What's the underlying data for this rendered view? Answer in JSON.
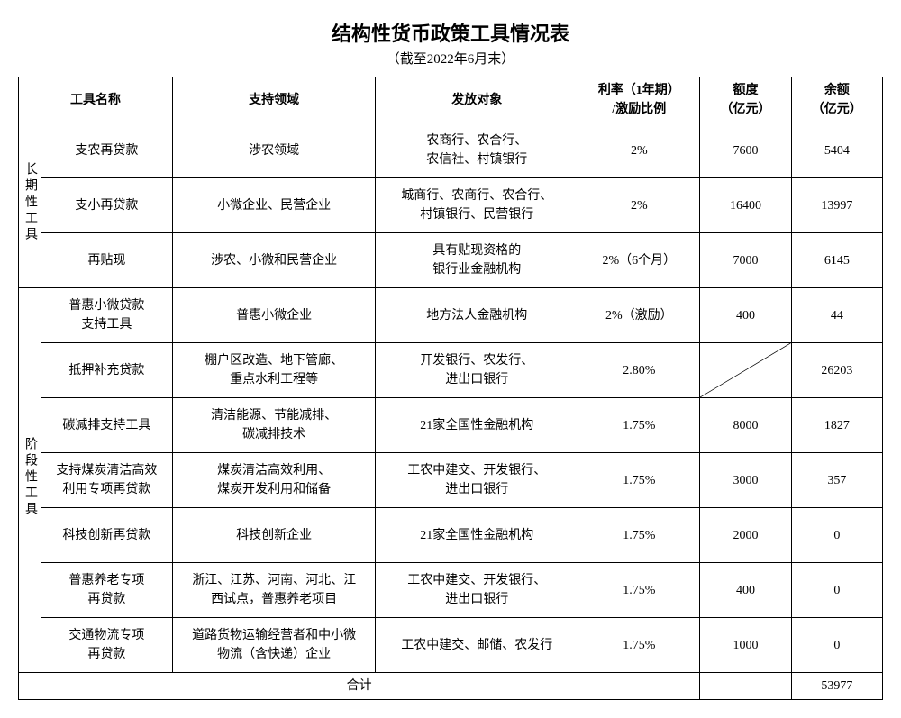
{
  "title": "结构性货币政策工具情况表",
  "subtitle": "（截至2022年6月末）",
  "headers": {
    "name": "工具名称",
    "field": "支持领域",
    "object": "发放对象",
    "rate": "利率（1年期）\n/激励比例",
    "quota": "额度\n（亿元）",
    "balance": "余额\n（亿元）"
  },
  "groups": {
    "longterm": "长期性工具",
    "phased": "阶段性工具"
  },
  "longterm_rows": [
    {
      "name": "支农再贷款",
      "field": "涉农领域",
      "object": "农商行、农合行、\n农信社、村镇银行",
      "rate": "2%",
      "quota": "7600",
      "balance": "5404"
    },
    {
      "name": "支小再贷款",
      "field": "小微企业、民营企业",
      "object": "城商行、农商行、农合行、\n村镇银行、民营银行",
      "rate": "2%",
      "quota": "16400",
      "balance": "13997"
    },
    {
      "name": "再贴现",
      "field": "涉农、小微和民营企业",
      "object": "具有贴现资格的\n银行业金融机构",
      "rate": "2%（6个月）",
      "quota": "7000",
      "balance": "6145"
    }
  ],
  "phased_rows": [
    {
      "name": "普惠小微贷款\n支持工具",
      "field": "普惠小微企业",
      "object": "地方法人金融机构",
      "rate": "2%（激励）",
      "quota": "400",
      "balance": "44"
    },
    {
      "name": "抵押补充贷款",
      "field": "棚户区改造、地下管廊、\n重点水利工程等",
      "object": "开发银行、农发行、\n进出口银行",
      "rate": "2.80%",
      "quota": "__DIAG__",
      "balance": "26203"
    },
    {
      "name": "碳减排支持工具",
      "field": "清洁能源、节能减排、\n碳减排技术",
      "object": "21家全国性金融机构",
      "rate": "1.75%",
      "quota": "8000",
      "balance": "1827"
    },
    {
      "name": "支持煤炭清洁高效\n利用专项再贷款",
      "field": "煤炭清洁高效利用、\n煤炭开发利用和储备",
      "object": "工农中建交、开发银行、\n进出口银行",
      "rate": "1.75%",
      "quota": "3000",
      "balance": "357"
    },
    {
      "name": "科技创新再贷款",
      "field": "科技创新企业",
      "object": "21家全国性金融机构",
      "rate": "1.75%",
      "quota": "2000",
      "balance": "0"
    },
    {
      "name": "普惠养老专项\n再贷款",
      "field": "浙江、江苏、河南、河北、江\n西试点，普惠养老项目",
      "object": "工农中建交、开发银行、\n进出口银行",
      "rate": "1.75%",
      "quota": "400",
      "balance": "0"
    },
    {
      "name": "交通物流专项\n再贷款",
      "field": "道路货物运输经营者和中小微\n物流（含快递）企业",
      "object": "工农中建交、邮储、农发行",
      "rate": "1.75%",
      "quota": "1000",
      "balance": "0"
    }
  ],
  "total_label": "合计",
  "total_value": "53977"
}
